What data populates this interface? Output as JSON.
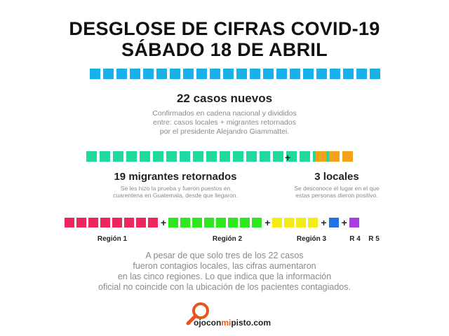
{
  "title": {
    "line1": "DESGLOSE DE CIFRAS COVID-19",
    "line2": "SÁBADO 18 DE ABRIL"
  },
  "total": {
    "count": 22,
    "color": "#1ab0ea",
    "heading": "22 casos nuevos",
    "description": [
      "Confirmados en cadena nacional y divididos",
      "entre: casos locales + migrantes retornados",
      "por el presidente Alejandro Giammattei."
    ]
  },
  "split": {
    "plus": "+",
    "migrants": {
      "count": 19,
      "color": "#1fd9a1",
      "heading": "19 migrantes retornados",
      "description": [
        "Se les hizo la prueba y fueron puestos en",
        "cuarentena en Guatemala, desde que llegaron."
      ]
    },
    "locals": {
      "count": 3,
      "color": "#f5a21b",
      "heading": "3 locales",
      "description": [
        "Se desconoce el lugar en el que",
        "estas personas dieron positivo."
      ]
    }
  },
  "regions": [
    {
      "label": "Región 1",
      "count": 8,
      "color": "#f0265a"
    },
    {
      "label": "Región 2",
      "count": 8,
      "color": "#2ee81f"
    },
    {
      "label": "Región 3",
      "count": 4,
      "color": "#f5ec16"
    },
    {
      "label": "R 4",
      "count": 1,
      "color": "#1f73e6"
    },
    {
      "label": "R 5",
      "count": 1,
      "color": "#a83ee0"
    }
  ],
  "footer": {
    "lines": [
      "A pesar de que solo tres de los 22 casos",
      "fueron contagios locales, las cifras aumentaron",
      "en las cinco regiones. Lo que indica que la información",
      "oficial no coincide con la ubicación de los pacientes contagiados."
    ]
  },
  "logo": {
    "prefix": "ojocon",
    "accent": "mi",
    "suffix": "pisto.com",
    "icon": "magnifier-icon",
    "accent_color": "#e8541a"
  }
}
